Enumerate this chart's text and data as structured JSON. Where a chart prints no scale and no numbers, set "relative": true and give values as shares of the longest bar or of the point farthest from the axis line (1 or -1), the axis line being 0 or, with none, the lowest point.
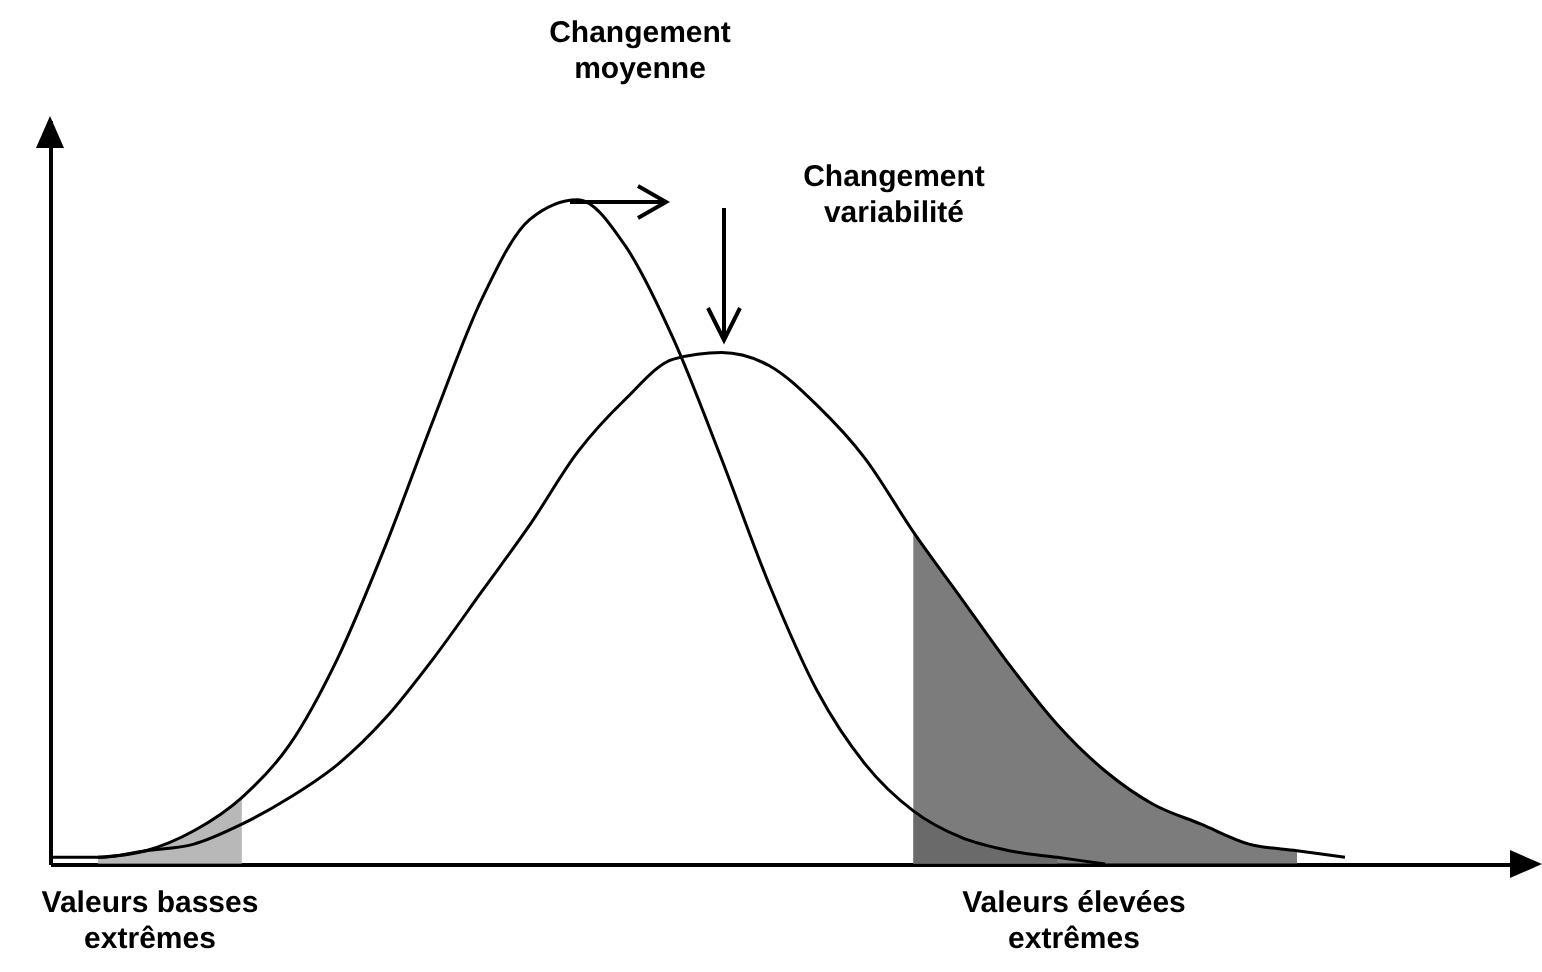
{
  "chart_data": {
    "type": "line",
    "relative": true,
    "grid": false,
    "tick_labels": false,
    "marker": "none",
    "line_style": "solid",
    "categories": [
      null,
      null,
      null,
      null,
      null,
      null,
      null,
      null,
      null,
      null,
      null,
      null,
      null,
      null,
      null,
      null,
      null,
      null,
      null,
      null,
      null,
      null,
      null,
      null,
      null,
      null,
      null,
      null,
      null,
      null,
      null
    ],
    "annotations": [
      "Changement\nmoyenne",
      "Changement\nvariabilité",
      "Valeurs basses\nextrêmes",
      "Valeurs élevées\nextrêmes"
    ],
    "series": [
      {
        "type": "area",
        "color": "#a0a0a0",
        "values": [
          null,
          0.01,
          0.02,
          0.05,
          0.1,
          null,
          null,
          null,
          null,
          null,
          null,
          null,
          null,
          null,
          null,
          null,
          null,
          null,
          null,
          null,
          null,
          null,
          null,
          null,
          null,
          null,
          null,
          null,
          null,
          null,
          null
        ]
      },
      {
        "type": "area",
        "color": "#a0a0a0",
        "values": [
          null,
          null,
          null,
          null,
          null,
          null,
          null,
          null,
          null,
          null,
          null,
          null,
          null,
          null,
          null,
          null,
          null,
          null,
          0.08,
          0.04,
          0.02,
          0.01,
          null,
          null,
          null,
          null,
          null,
          null,
          null,
          null,
          null
        ]
      },
      {
        "type": "area",
        "color": "#505050",
        "values": [
          null,
          null,
          null,
          null,
          null,
          null,
          null,
          null,
          null,
          null,
          null,
          null,
          null,
          null,
          null,
          null,
          null,
          null,
          0.5,
          0.4,
          0.3,
          0.21,
          0.14,
          0.09,
          0.06,
          0.03,
          0.02,
          null,
          null,
          null,
          null
        ]
      },
      {
        "color": "#000000",
        "values": [
          null,
          0.01,
          0.02,
          0.05,
          0.1,
          0.18,
          0.31,
          0.48,
          0.67,
          0.85,
          0.97,
          1.0,
          0.93,
          0.79,
          0.61,
          0.42,
          0.26,
          0.15,
          0.08,
          0.04,
          0.02,
          0.01,
          0.0,
          null,
          null,
          null,
          null,
          null,
          null,
          null,
          null
        ]
      },
      {
        "color": "#000000",
        "values": [
          0.01,
          0.01,
          0.02,
          0.03,
          0.06,
          0.1,
          0.15,
          0.22,
          0.31,
          0.41,
          0.51,
          0.62,
          0.7,
          0.76,
          0.77,
          0.75,
          0.69,
          0.61,
          0.5,
          0.4,
          0.3,
          0.21,
          0.14,
          0.09,
          0.06,
          0.03,
          0.02,
          0.01,
          null,
          null,
          null
        ]
      }
    ]
  }
}
